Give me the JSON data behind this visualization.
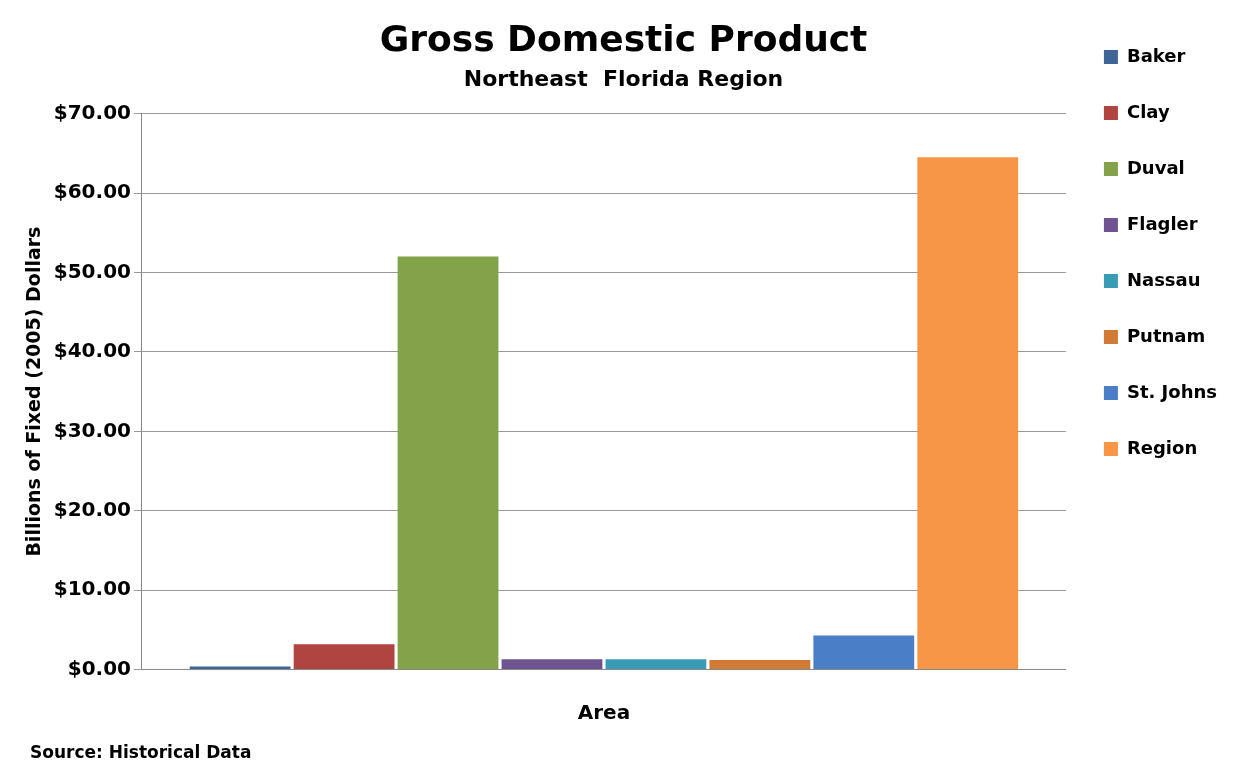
{
  "chart_data": {
    "type": "bar",
    "title": "Gross Domestic Product",
    "subtitle": "Northeast  Florida Region",
    "xlabel": "Area",
    "ylabel": "Billions of Fixed (2005) Dollars",
    "categories": [
      null
    ],
    "series": [
      {
        "name": "Baker",
        "color": "#3d6597",
        "values": [
          0.4
        ]
      },
      {
        "name": "Clay",
        "color": "#b04440",
        "values": [
          3.2
        ]
      },
      {
        "name": "Duval",
        "color": "#84a24a",
        "values": [
          52
        ]
      },
      {
        "name": "Flagler",
        "color": "#6f5390",
        "values": [
          1.3
        ]
      },
      {
        "name": "Nassau",
        "color": "#3a9cb4",
        "values": [
          1.3
        ]
      },
      {
        "name": "Putnam",
        "color": "#d07a36",
        "values": [
          1.2
        ]
      },
      {
        "name": "St. Johns",
        "color": "#4a7fc8",
        "values": [
          4.3
        ]
      },
      {
        "name": "Region",
        "color": "#f79646",
        "values": [
          64.5
        ]
      }
    ],
    "ylim": [
      0,
      70
    ],
    "yticks": [
      {
        "value": 0,
        "label": "$0.00"
      },
      {
        "value": 10,
        "label": "$10.00"
      },
      {
        "value": 20,
        "label": "$20.00"
      },
      {
        "value": 30,
        "label": "$30.00"
      },
      {
        "value": 40,
        "label": "$40.00"
      },
      {
        "value": 50,
        "label": "$50.00"
      },
      {
        "value": 60,
        "label": "$60.00"
      },
      {
        "value": 70,
        "label": "$70.00"
      }
    ],
    "grid": "y",
    "legend": "right",
    "annotations": [
      "Source: Historical Data"
    ]
  }
}
